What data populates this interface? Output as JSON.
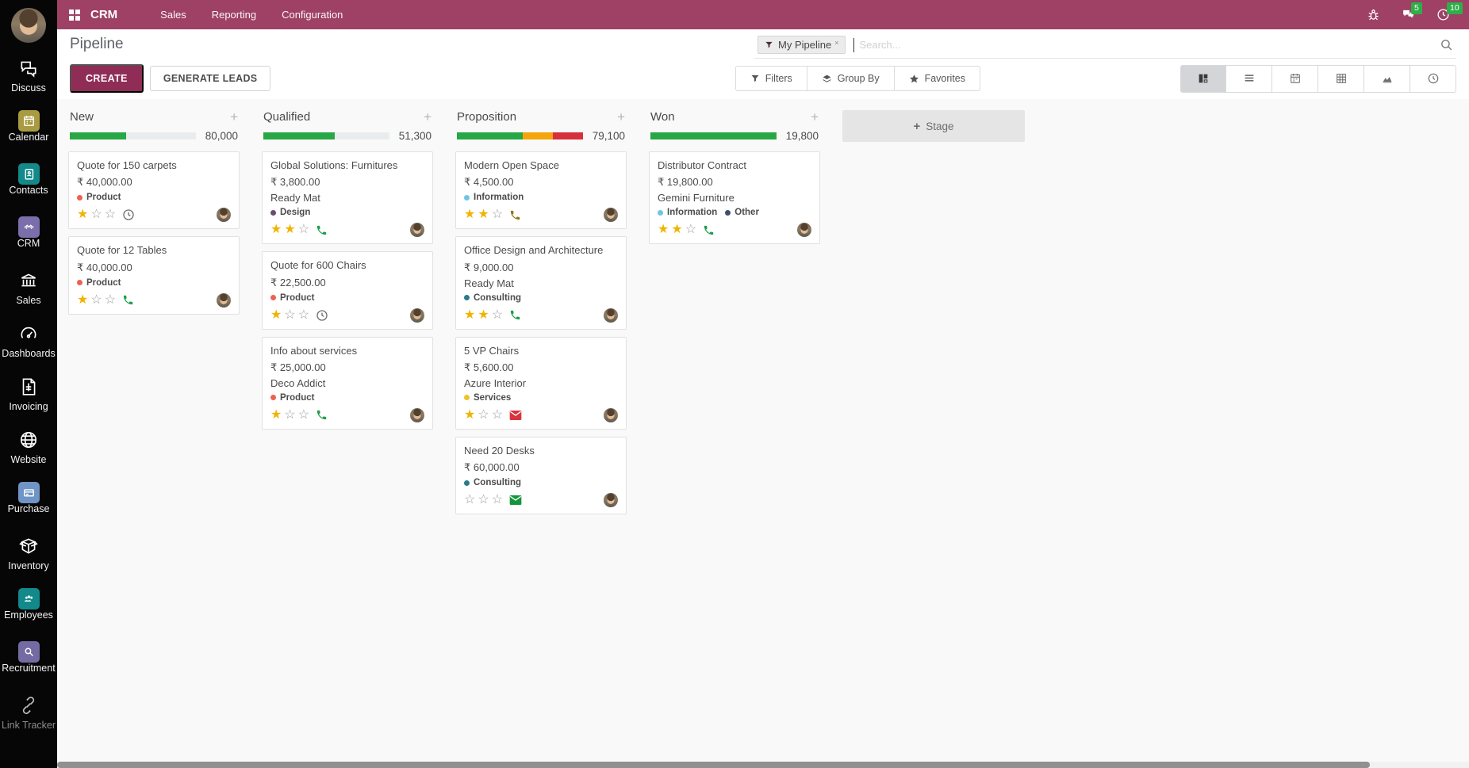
{
  "topbar": {
    "app_name": "CRM",
    "menus": [
      "Sales",
      "Reporting",
      "Configuration"
    ],
    "messages_badge": "5",
    "activities_badge": "10"
  },
  "sidebar": {
    "items": [
      {
        "label": "Discuss"
      },
      {
        "label": "Calendar"
      },
      {
        "label": "Contacts"
      },
      {
        "label": "CRM"
      },
      {
        "label": "Sales"
      },
      {
        "label": "Dashboards"
      },
      {
        "label": "Invoicing"
      },
      {
        "label": "Website"
      },
      {
        "label": "Purchase"
      },
      {
        "label": "Inventory"
      },
      {
        "label": "Employees"
      },
      {
        "label": "Recruitment"
      },
      {
        "label": "Link Tracker"
      }
    ]
  },
  "control_panel": {
    "title": "Pipeline",
    "create_button": "CREATE",
    "generate_leads_button": "GENERATE LEADS",
    "search_facet": "My Pipeline",
    "facet_remove": "×",
    "search_placeholder": "Search...",
    "filters_button": "Filters",
    "group_by_button": "Group By",
    "favorites_button": "Favorites"
  },
  "colors": {
    "navbar": "#9e4164",
    "primary_button": "#8f2d56",
    "badge_green": "#2fae49",
    "progress_success": "#28a745",
    "progress_warning": "#f5a50a",
    "progress_danger": "#d6303c",
    "star_gold": "#f0b400"
  },
  "kanban": {
    "add_stage_label": "Stage",
    "add_column_label": "+",
    "columns": [
      {
        "name": "New",
        "total": "80,000",
        "progress": [
          {
            "color": "#28a745",
            "pct": 45
          },
          {
            "color": "#e9ecef",
            "pct": 55
          }
        ],
        "cards": [
          {
            "title": "Quote for 150 carpets",
            "amount": "₹ 40,000.00",
            "tags": [
              {
                "label": "Product",
                "color": "#f06050"
              }
            ],
            "stars": 1,
            "activity": {
              "icon": "clock",
              "color": "#6e6e6e"
            }
          },
          {
            "title": "Quote for 12 Tables",
            "amount": "₹ 40,000.00",
            "tags": [
              {
                "label": "Product",
                "color": "#f06050"
              }
            ],
            "stars": 1,
            "activity": {
              "icon": "phone",
              "color": "#1f9e47"
            }
          }
        ]
      },
      {
        "name": "Qualified",
        "total": "51,300",
        "progress": [
          {
            "color": "#28a745",
            "pct": 57
          },
          {
            "color": "#e9ecef",
            "pct": 43
          }
        ],
        "cards": [
          {
            "title": "Global Solutions: Furnitures",
            "amount": "₹ 3,800.00",
            "partner": "Ready Mat",
            "tags": [
              {
                "label": "Design",
                "color": "#6d4a73"
              }
            ],
            "stars": 2,
            "activity": {
              "icon": "phone",
              "color": "#1f9e47"
            }
          },
          {
            "title": "Quote for 600 Chairs",
            "amount": "₹ 22,500.00",
            "tags": [
              {
                "label": "Product",
                "color": "#f06050"
              }
            ],
            "stars": 1,
            "activity": {
              "icon": "clock",
              "color": "#6e6e6e"
            }
          },
          {
            "title": "Info about services",
            "amount": "₹ 25,000.00",
            "partner": "Deco Addict",
            "tags": [
              {
                "label": "Product",
                "color": "#f06050"
              }
            ],
            "stars": 1,
            "activity": {
              "icon": "phone",
              "color": "#1f9e47"
            }
          }
        ]
      },
      {
        "name": "Proposition",
        "total": "79,100",
        "progress": [
          {
            "color": "#28a745",
            "pct": 52
          },
          {
            "color": "#f5a50a",
            "pct": 24
          },
          {
            "color": "#d6303c",
            "pct": 24
          }
        ],
        "cards": [
          {
            "title": "Modern Open Space",
            "amount": "₹ 4,500.00",
            "tags": [
              {
                "label": "Information",
                "color": "#6fc4e8"
              }
            ],
            "stars": 2,
            "activity": {
              "icon": "phone",
              "color": "#8f7a1a"
            }
          },
          {
            "title": "Office Design and Architecture",
            "amount": "₹ 9,000.00",
            "partner": "Ready Mat",
            "tags": [
              {
                "label": "Consulting",
                "color": "#2c7a8c"
              }
            ],
            "stars": 2,
            "activity": {
              "icon": "phone",
              "color": "#1f9e47"
            }
          },
          {
            "title": "5 VP Chairs",
            "amount": "₹ 5,600.00",
            "partner": "Azure Interior",
            "tags": [
              {
                "label": "Services",
                "color": "#eec22c"
              }
            ],
            "stars": 1,
            "activity": {
              "icon": "envelope",
              "color": "#d8343d"
            }
          },
          {
            "title": "Need 20 Desks",
            "amount": "₹ 60,000.00",
            "tags": [
              {
                "label": "Consulting",
                "color": "#2c7a8c"
              }
            ],
            "stars": 0,
            "activity": {
              "icon": "envelope",
              "color": "#13963b"
            }
          }
        ]
      },
      {
        "name": "Won",
        "total": "19,800",
        "progress": [
          {
            "color": "#28a745",
            "pct": 100
          }
        ],
        "cards": [
          {
            "title": "Distributor Contract",
            "amount": "₹ 19,800.00",
            "partner": "Gemini Furniture",
            "tags": [
              {
                "label": "Information",
                "color": "#6fc4e8"
              },
              {
                "label": "Other",
                "color": "#3e4f6b"
              }
            ],
            "stars": 2,
            "activity": {
              "icon": "phone",
              "color": "#1f9e47"
            }
          }
        ]
      }
    ]
  }
}
